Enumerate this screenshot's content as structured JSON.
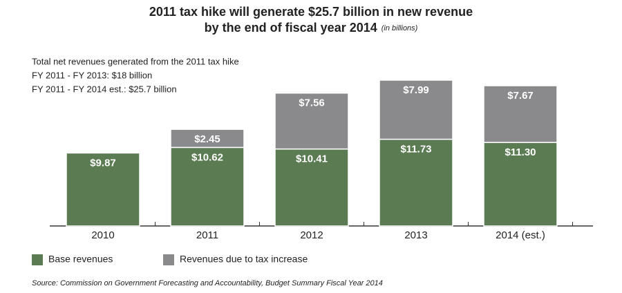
{
  "chart_data": {
    "type": "stacked-bar",
    "title": "2011 tax hike will generate $25.7 billion in new revenue",
    "subtitle": "by the end of fiscal year 2014",
    "unit_note": "(in billions)",
    "annotations": [
      "Total net revenues generated from the 2011 tax hike",
      "FY 2011 - FY 2013: $18 billion",
      "FY 2011 - FY 2014 est.: $25.7 billion"
    ],
    "categories": [
      "2010",
      "2011",
      "2012",
      "2013",
      "2014 (est.)"
    ],
    "series": [
      {
        "name": "Base revenues",
        "color": "#5b7b52",
        "values": [
          9.87,
          10.62,
          10.41,
          11.73,
          11.3
        ],
        "value_labels": [
          "$9.87",
          "$10.62",
          "$10.41",
          "$11.73",
          "$11.30"
        ]
      },
      {
        "name": "Revenues due to tax increase",
        "color": "#8a8a8c",
        "values": [
          null,
          2.45,
          7.56,
          7.99,
          7.67
        ],
        "value_labels": [
          null,
          "$2.45",
          "$7.56",
          "$7.99",
          "$7.67"
        ]
      }
    ],
    "source": "Source: Commission on Government Forecasting and Accountability, Budget Summary Fiscal Year 2014"
  }
}
